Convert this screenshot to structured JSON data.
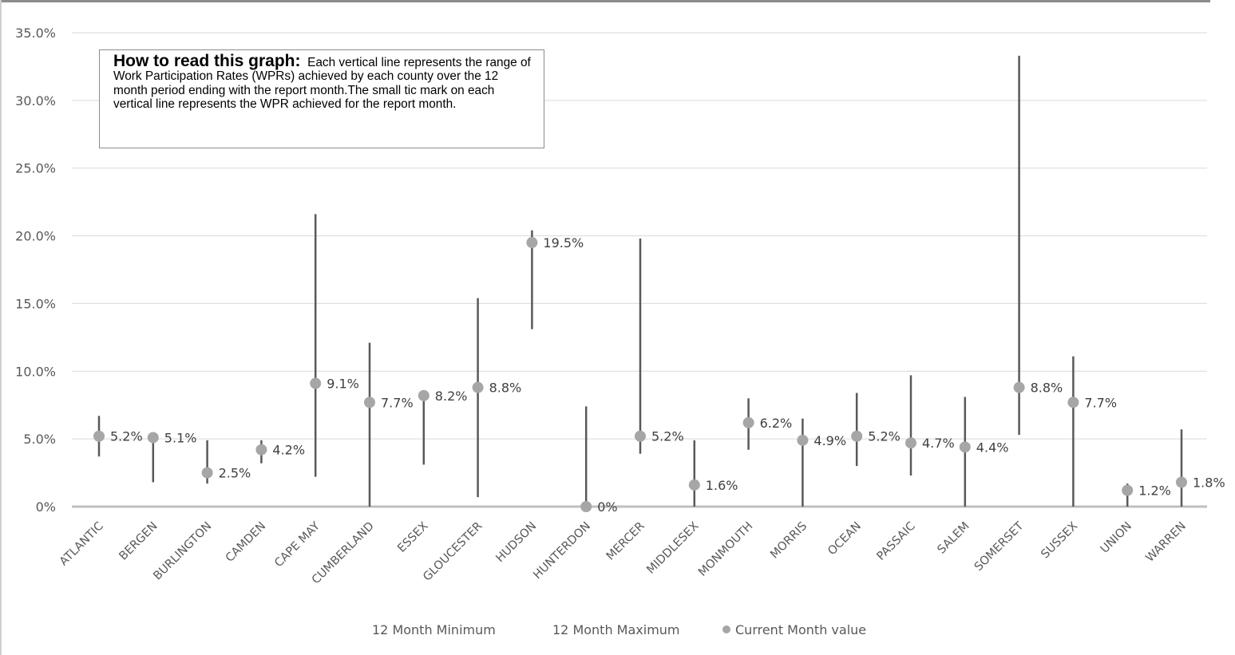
{
  "chart_data": {
    "type": "range-dot",
    "categories": [
      "ATLANTIC",
      "BERGEN",
      "BURLINGTON",
      "CAMDEN",
      "CAPE MAY",
      "CUMBERLAND",
      "ESSEX",
      "GLOUCESTER",
      "HUDSON",
      "HUNTERDON",
      "MERCER",
      "MIDDLESEX",
      "MONMOUTH",
      "MORRIS",
      "OCEAN",
      "PASSAIC",
      "SALEM",
      "SOMERSET",
      "SUSSEX",
      "UNION",
      "WARREN"
    ],
    "series": [
      {
        "name": "12 Month Minimum",
        "values": [
          3.7,
          1.8,
          1.7,
          3.2,
          2.2,
          0,
          3.1,
          0.7,
          13.1,
          0,
          3.9,
          0,
          4.2,
          0,
          3.0,
          2.3,
          0,
          5.3,
          0,
          0,
          0
        ]
      },
      {
        "name": "12 Month Maximum",
        "values": [
          6.7,
          5.1,
          4.9,
          4.9,
          21.6,
          12.1,
          8.2,
          15.4,
          20.4,
          7.4,
          19.8,
          4.9,
          8.0,
          6.5,
          8.4,
          9.7,
          8.1,
          33.3,
          11.1,
          1.7,
          5.7
        ]
      },
      {
        "name": "Current Month value",
        "values": [
          5.2,
          5.1,
          2.5,
          4.2,
          9.1,
          7.7,
          8.2,
          8.8,
          19.5,
          0,
          5.2,
          1.6,
          6.2,
          4.9,
          5.2,
          4.7,
          4.4,
          8.8,
          7.7,
          1.2,
          1.8
        ]
      }
    ],
    "data_labels": [
      "5.2%",
      "5.1%",
      "2.5%",
      "4.2%",
      "9.1%",
      "7.7%",
      "8.2%",
      "8.8%",
      "19.5%",
      "0%",
      "5.2%",
      "1.6%",
      "6.2%",
      "4.9%",
      "5.2%",
      "4.7%",
      "4.4%",
      "8.8%",
      "7.7%",
      "1.2%",
      "1.8%"
    ],
    "y_ticks": [
      "0%",
      "5.0%",
      "10.0%",
      "15.0%",
      "20.0%",
      "25.0%",
      "30.0%",
      "35.0%"
    ],
    "ylim": [
      0,
      35
    ],
    "grid": true,
    "legend_position": "bottom",
    "colors": {
      "range_line": "#595959",
      "current_dot": "#a6a6a6",
      "gridline": "#d9d9d9",
      "axis": "#bfbfbf"
    }
  },
  "note": {
    "heading": "How to read this graph:",
    "text": "Each vertical line represents the range of Work Participation Rates (WPRs) achieved by each county over the 12 month period ending with the report month.The small tic mark on each vertical line represents the WPR achieved for the report month."
  }
}
